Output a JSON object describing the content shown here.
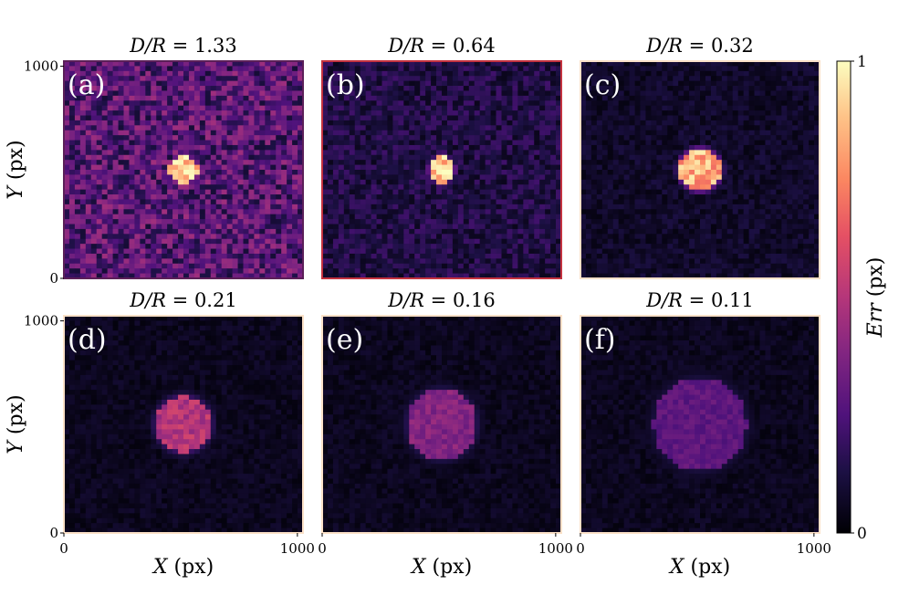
{
  "chart_data": {
    "type": "heatmap",
    "colormap": "magma",
    "shared_xlabel": {
      "var": "X",
      "unit": " (px)"
    },
    "shared_ylabel": {
      "var": "Y",
      "unit": " (px)"
    },
    "x_range": [
      0,
      1024
    ],
    "y_range": [
      0,
      1024
    ],
    "x_ticks": [
      "0",
      "1000"
    ],
    "y_ticks": [
      "0",
      "1000"
    ],
    "colorbar": {
      "label_var": "Err",
      "label_unit": " (px)",
      "ticks": [
        "0",
        "1"
      ],
      "range": [
        0,
        1
      ]
    },
    "panels": [
      {
        "tag": "(a)",
        "title_lhs": "D/R",
        "title_value": "= 1.33",
        "dr": 1.33,
        "background_level": 0.25,
        "spot_level": 1.0,
        "spot_radius": 60,
        "frame_color": "#5b1f58"
      },
      {
        "tag": "(b)",
        "title_lhs": "D/R",
        "title_value": "= 0.64",
        "dr": 0.64,
        "background_level": 0.12,
        "spot_level": 1.0,
        "spot_radius": 55,
        "frame_color": "#c4323f"
      },
      {
        "tag": "(c)",
        "title_lhs": "D/R",
        "title_value": "= 0.32",
        "dr": 0.32,
        "background_level": 0.07,
        "spot_level": 0.92,
        "spot_radius": 90,
        "frame_color": "#fbe1c8"
      },
      {
        "tag": "(d)",
        "title_lhs": "D/R",
        "title_value": "= 0.21",
        "dr": 0.21,
        "background_level": 0.05,
        "spot_level": 0.55,
        "spot_radius": 120,
        "frame_color": "#fbe1c8"
      },
      {
        "tag": "(e)",
        "title_lhs": "D/R",
        "title_value": "= 0.16",
        "dr": 0.16,
        "background_level": 0.05,
        "spot_level": 0.42,
        "spot_radius": 150,
        "frame_color": "#fbe1c8"
      },
      {
        "tag": "(f)",
        "title_lhs": "D/R",
        "title_value": "= 0.11",
        "dr": 0.11,
        "background_level": 0.05,
        "spot_level": 0.32,
        "spot_radius": 200,
        "frame_color": "#fbe1c8"
      }
    ]
  }
}
